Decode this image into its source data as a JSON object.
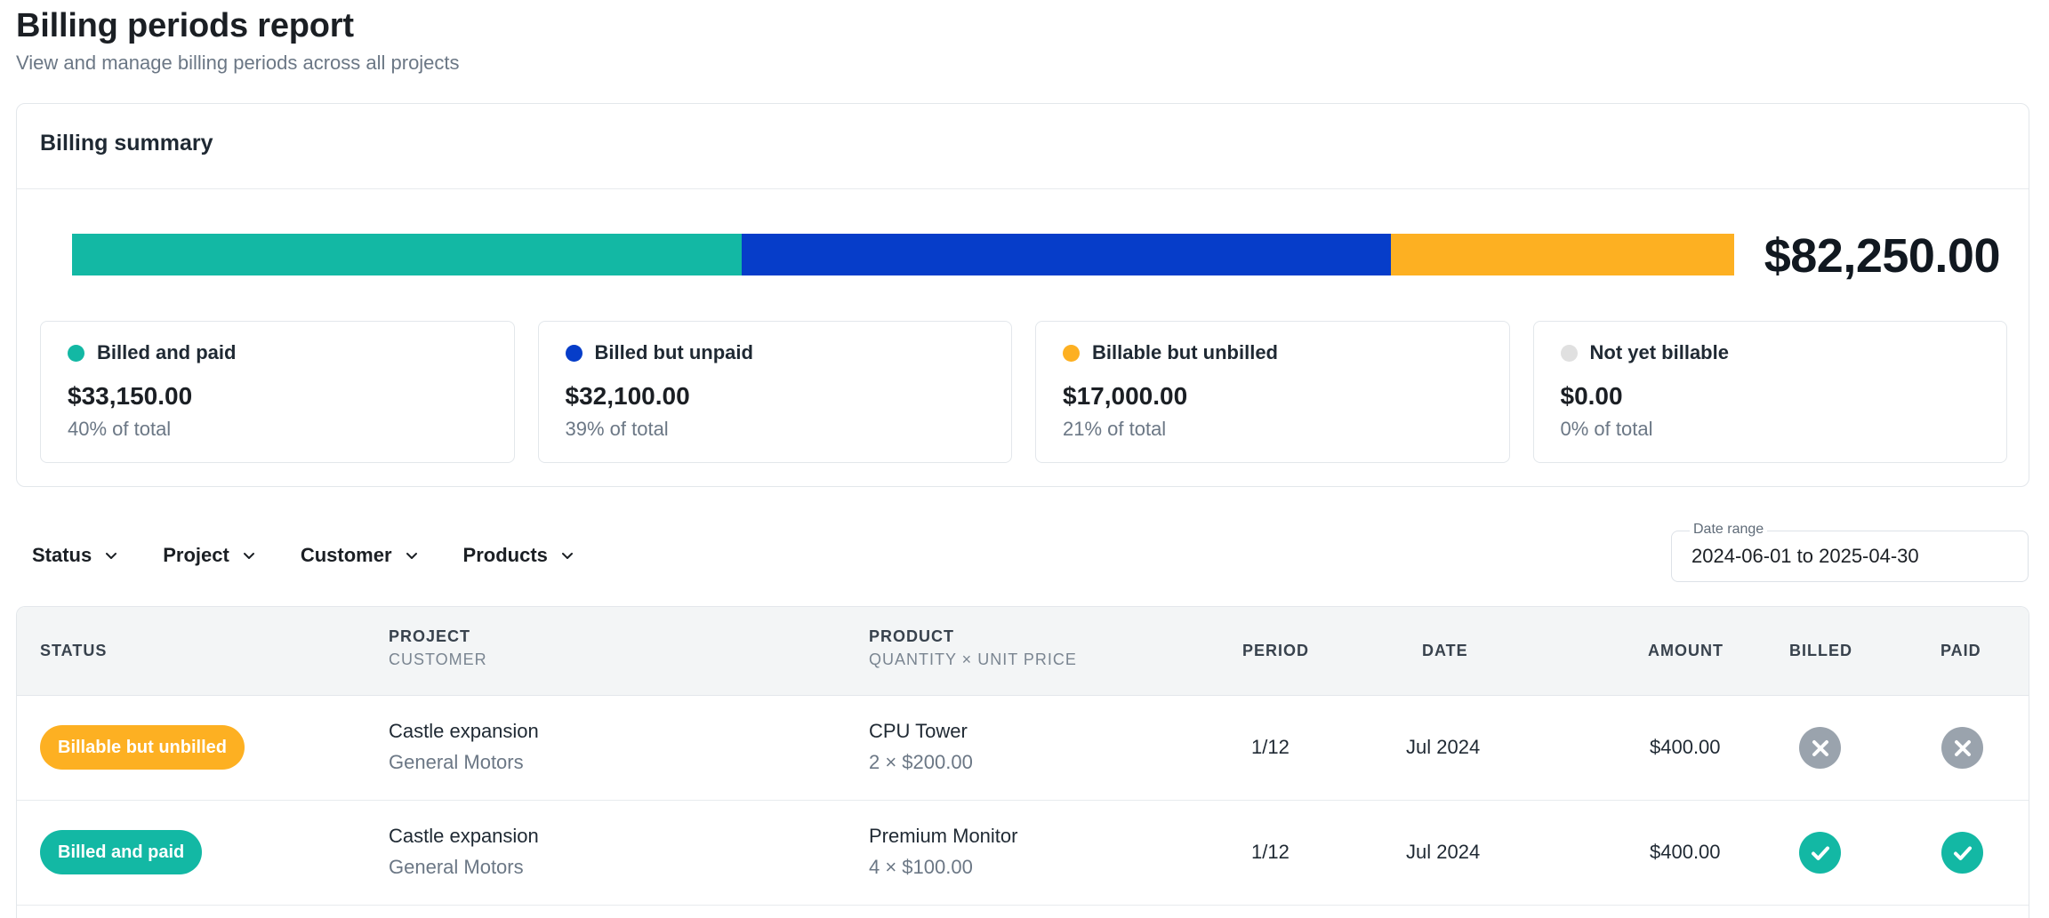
{
  "header": {
    "title": "Billing periods report",
    "subtitle": "View and manage billing periods across all projects"
  },
  "summary": {
    "title": "Billing summary",
    "total": "$82,250.00",
    "segments": [
      {
        "name": "Billed and paid",
        "value": 33150,
        "color": "#13b8a4"
      },
      {
        "name": "Billed but unpaid",
        "value": 32100,
        "color": "#063dc9"
      },
      {
        "name": "Billable but unbilled",
        "value": 17000,
        "color": "#fdb022"
      },
      {
        "name": "Not yet billable",
        "value": 0,
        "color": "#e0e0e0"
      }
    ],
    "cards": [
      {
        "label": "Billed and paid",
        "amount": "$33,150.00",
        "pct": "40% of total",
        "color": "#13b8a4"
      },
      {
        "label": "Billed but unpaid",
        "amount": "$32,100.00",
        "pct": "39% of total",
        "color": "#063dc9"
      },
      {
        "label": "Billable but unbilled",
        "amount": "$17,000.00",
        "pct": "21% of total",
        "color": "#fdb022"
      },
      {
        "label": "Not yet billable",
        "amount": "$0.00",
        "pct": "0% of total",
        "color": "#e0e0e0"
      }
    ]
  },
  "filters": [
    {
      "label": "Status",
      "icon": "chevron-down-icon"
    },
    {
      "label": "Project",
      "icon": "chevron-down-icon"
    },
    {
      "label": "Customer",
      "icon": "chevron-down-icon"
    },
    {
      "label": "Products",
      "icon": "chevron-down-icon"
    }
  ],
  "date_range": {
    "label": "Date range",
    "value": "2024-06-01 to 2025-04-30"
  },
  "table": {
    "columns": {
      "status": "STATUS",
      "project": "PROJECT",
      "customer": "CUSTOMER",
      "product": "PRODUCT",
      "qty_price": "QUANTITY × UNIT PRICE",
      "period": "PERIOD",
      "date": "DATE",
      "amount": "AMOUNT",
      "billed": "BILLED",
      "paid": "PAID"
    },
    "rows": [
      {
        "status": "Billable but unbilled",
        "status_color": "#fdb022",
        "project": "Castle expansion",
        "customer": "General Motors",
        "product": "CPU Tower",
        "qty_price": "2 × $200.00",
        "period": "1/12",
        "date": "Jul 2024",
        "amount": "$400.00",
        "billed": "x-circle-icon",
        "paid": "x-circle-icon"
      },
      {
        "status": "Billed and paid",
        "status_color": "#13b8a4",
        "project": "Castle expansion",
        "customer": "General Motors",
        "product": "Premium Monitor",
        "qty_price": "4 × $100.00",
        "period": "1/12",
        "date": "Jul 2024",
        "amount": "$400.00",
        "billed": "check-circle-icon",
        "paid": "check-circle-icon"
      }
    ]
  },
  "colors": {
    "icon_no": "#9aa3ad",
    "icon_yes": "#13b8a4"
  }
}
